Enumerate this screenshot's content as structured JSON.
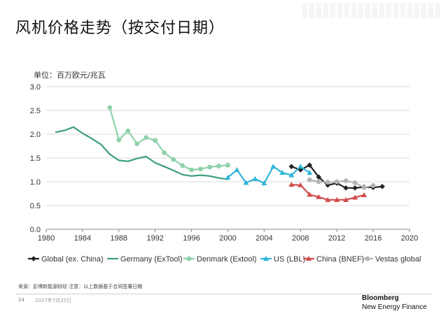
{
  "page": {
    "title": "风机价格走势（按交付日期）",
    "unit_label": "单位：百万欧元/兆瓦",
    "source_note": "来源：彭博新能源财经 注意：以上数据基于合同签署日期",
    "page_number": "24",
    "date": "2017年7月25日",
    "brand_line1": "Bloomberg",
    "brand_line2": "New Energy Finance"
  },
  "chart_data": {
    "type": "line",
    "title": "风机价格走势（按交付日期）",
    "xlabel": "",
    "ylabel": "单位：百万欧元/兆瓦",
    "xlim": [
      1980,
      2020
    ],
    "ylim": [
      0,
      3.0
    ],
    "x_ticks": [
      "1980",
      "1984",
      "1988",
      "1992",
      "1996",
      "2000",
      "2004",
      "2008",
      "2012",
      "2016",
      "2020"
    ],
    "y_ticks": [
      "0.0",
      "0.5",
      "1.0",
      "1.5",
      "2.0",
      "2.5",
      "3.0"
    ],
    "grid": "horizontal",
    "legend_position": "bottom",
    "series": [
      {
        "name": "Global (ex. China)",
        "color": "#222222",
        "marker": "diamond",
        "x": [
          2007,
          2008,
          2009,
          2010,
          2011,
          2012,
          2013,
          2014,
          2015,
          2016,
          2017
        ],
        "y": [
          1.32,
          1.25,
          1.35,
          1.1,
          0.93,
          0.97,
          0.87,
          0.87,
          0.89,
          0.88,
          0.9
        ]
      },
      {
        "name": "Germany (ExTool)",
        "color": "#3d9e7a",
        "marker": "none",
        "x": [
          1981,
          1982,
          1983,
          1984,
          1985,
          1986,
          1987,
          1988,
          1989,
          1990,
          1991,
          1992,
          1993,
          1994,
          1995,
          1996,
          1997,
          1998,
          1999,
          2000
        ],
        "y": [
          2.04,
          2.08,
          2.15,
          2.02,
          1.91,
          1.79,
          1.58,
          1.45,
          1.43,
          1.49,
          1.53,
          1.4,
          1.32,
          1.24,
          1.15,
          1.12,
          1.14,
          1.12,
          1.08,
          1.05
        ]
      },
      {
        "name": "Denmark (Extool)",
        "color": "#8fd1a9",
        "marker": "circle",
        "x": [
          1987,
          1988,
          1989,
          1990,
          1991,
          1992,
          1993,
          1994,
          1995,
          1996,
          1997,
          1998,
          1999,
          2000
        ],
        "y": [
          2.56,
          1.88,
          2.07,
          1.8,
          1.93,
          1.87,
          1.61,
          1.47,
          1.34,
          1.25,
          1.27,
          1.31,
          1.33,
          1.35
        ]
      },
      {
        "name": "US (LBL)",
        "color": "#2fb5d8",
        "marker": "triangle",
        "x": [
          2000,
          2001,
          2002,
          2003,
          2004,
          2005,
          2006,
          2007,
          2008,
          2009
        ],
        "y": [
          1.09,
          1.25,
          0.98,
          1.06,
          0.97,
          1.32,
          1.19,
          1.14,
          1.32,
          1.19
        ]
      },
      {
        "name": "China (BNEF)",
        "color": "#d24b4b",
        "marker": "triangle",
        "x": [
          2007,
          2008,
          2009,
          2010,
          2011,
          2012,
          2013,
          2014,
          2015
        ],
        "y": [
          0.94,
          0.93,
          0.73,
          0.68,
          0.62,
          0.62,
          0.62,
          0.67,
          0.72
        ]
      },
      {
        "name": "Vestas global",
        "color": "#b3b3b3",
        "marker": "circle",
        "x": [
          2009,
          2010,
          2011,
          2012,
          2013,
          2014,
          2015,
          2016
        ],
        "y": [
          1.04,
          1.0,
          0.99,
          1.0,
          1.02,
          0.98,
          0.88,
          0.92
        ]
      }
    ]
  }
}
